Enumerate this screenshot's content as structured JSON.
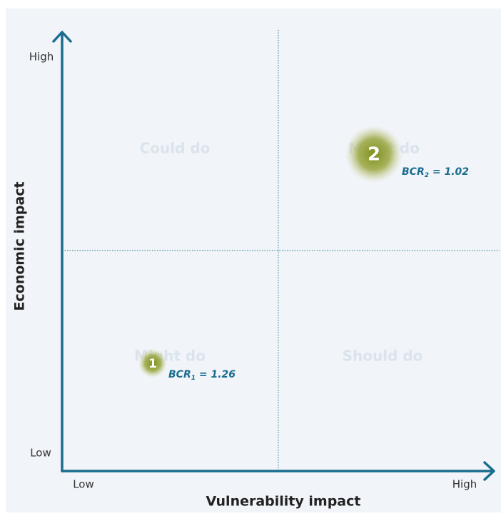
{
  "axes": {
    "y_title": "Economic impact",
    "x_title": "Vulnerability impact",
    "y_high": "High",
    "y_low": "Low",
    "x_low": "Low",
    "x_high": "High"
  },
  "quadrants": [
    {
      "label": "Could do"
    },
    {
      "label": "Might do"
    },
    {
      "label": "Might do"
    },
    {
      "label": "Should do"
    }
  ],
  "bubbles": [
    {
      "label": "1",
      "annotation": {
        "prefix": "BCR",
        "subscript": "1",
        "suffix": " = 1.26"
      }
    },
    {
      "label": "2",
      "annotation": {
        "prefix": "BCR",
        "subscript": "2",
        "suffix": " = 1.02"
      }
    }
  ]
}
